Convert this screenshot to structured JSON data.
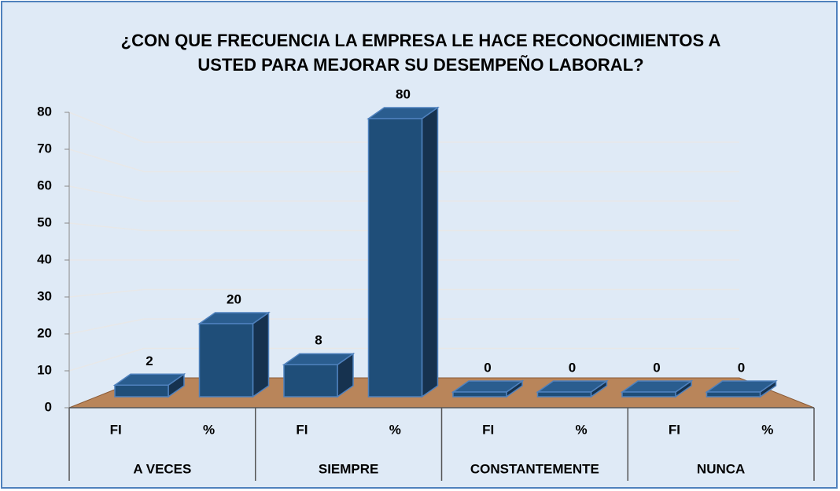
{
  "chart_data": {
    "type": "bar3d",
    "title": "¿CON QUE FRECUENCIA LA EMPRESA LE HACE RECONOCIMIENTOS A USTED PARA MEJORAR SU DESEMPEÑO LABORAL?",
    "categories": [
      "FI",
      "%",
      "FI",
      "%",
      "FI",
      "%",
      "FI",
      "%"
    ],
    "groups": [
      "A VECES",
      "SIEMPRE",
      "CONSTANTEMENTE",
      "NUNCA"
    ],
    "values": [
      2,
      20,
      8,
      80,
      0,
      0,
      0,
      0
    ],
    "color": "#1f4e79",
    "ylim": [
      0,
      80
    ],
    "yticks": [
      0,
      10,
      20,
      30,
      40,
      50,
      60,
      70,
      80
    ],
    "grid": true
  }
}
